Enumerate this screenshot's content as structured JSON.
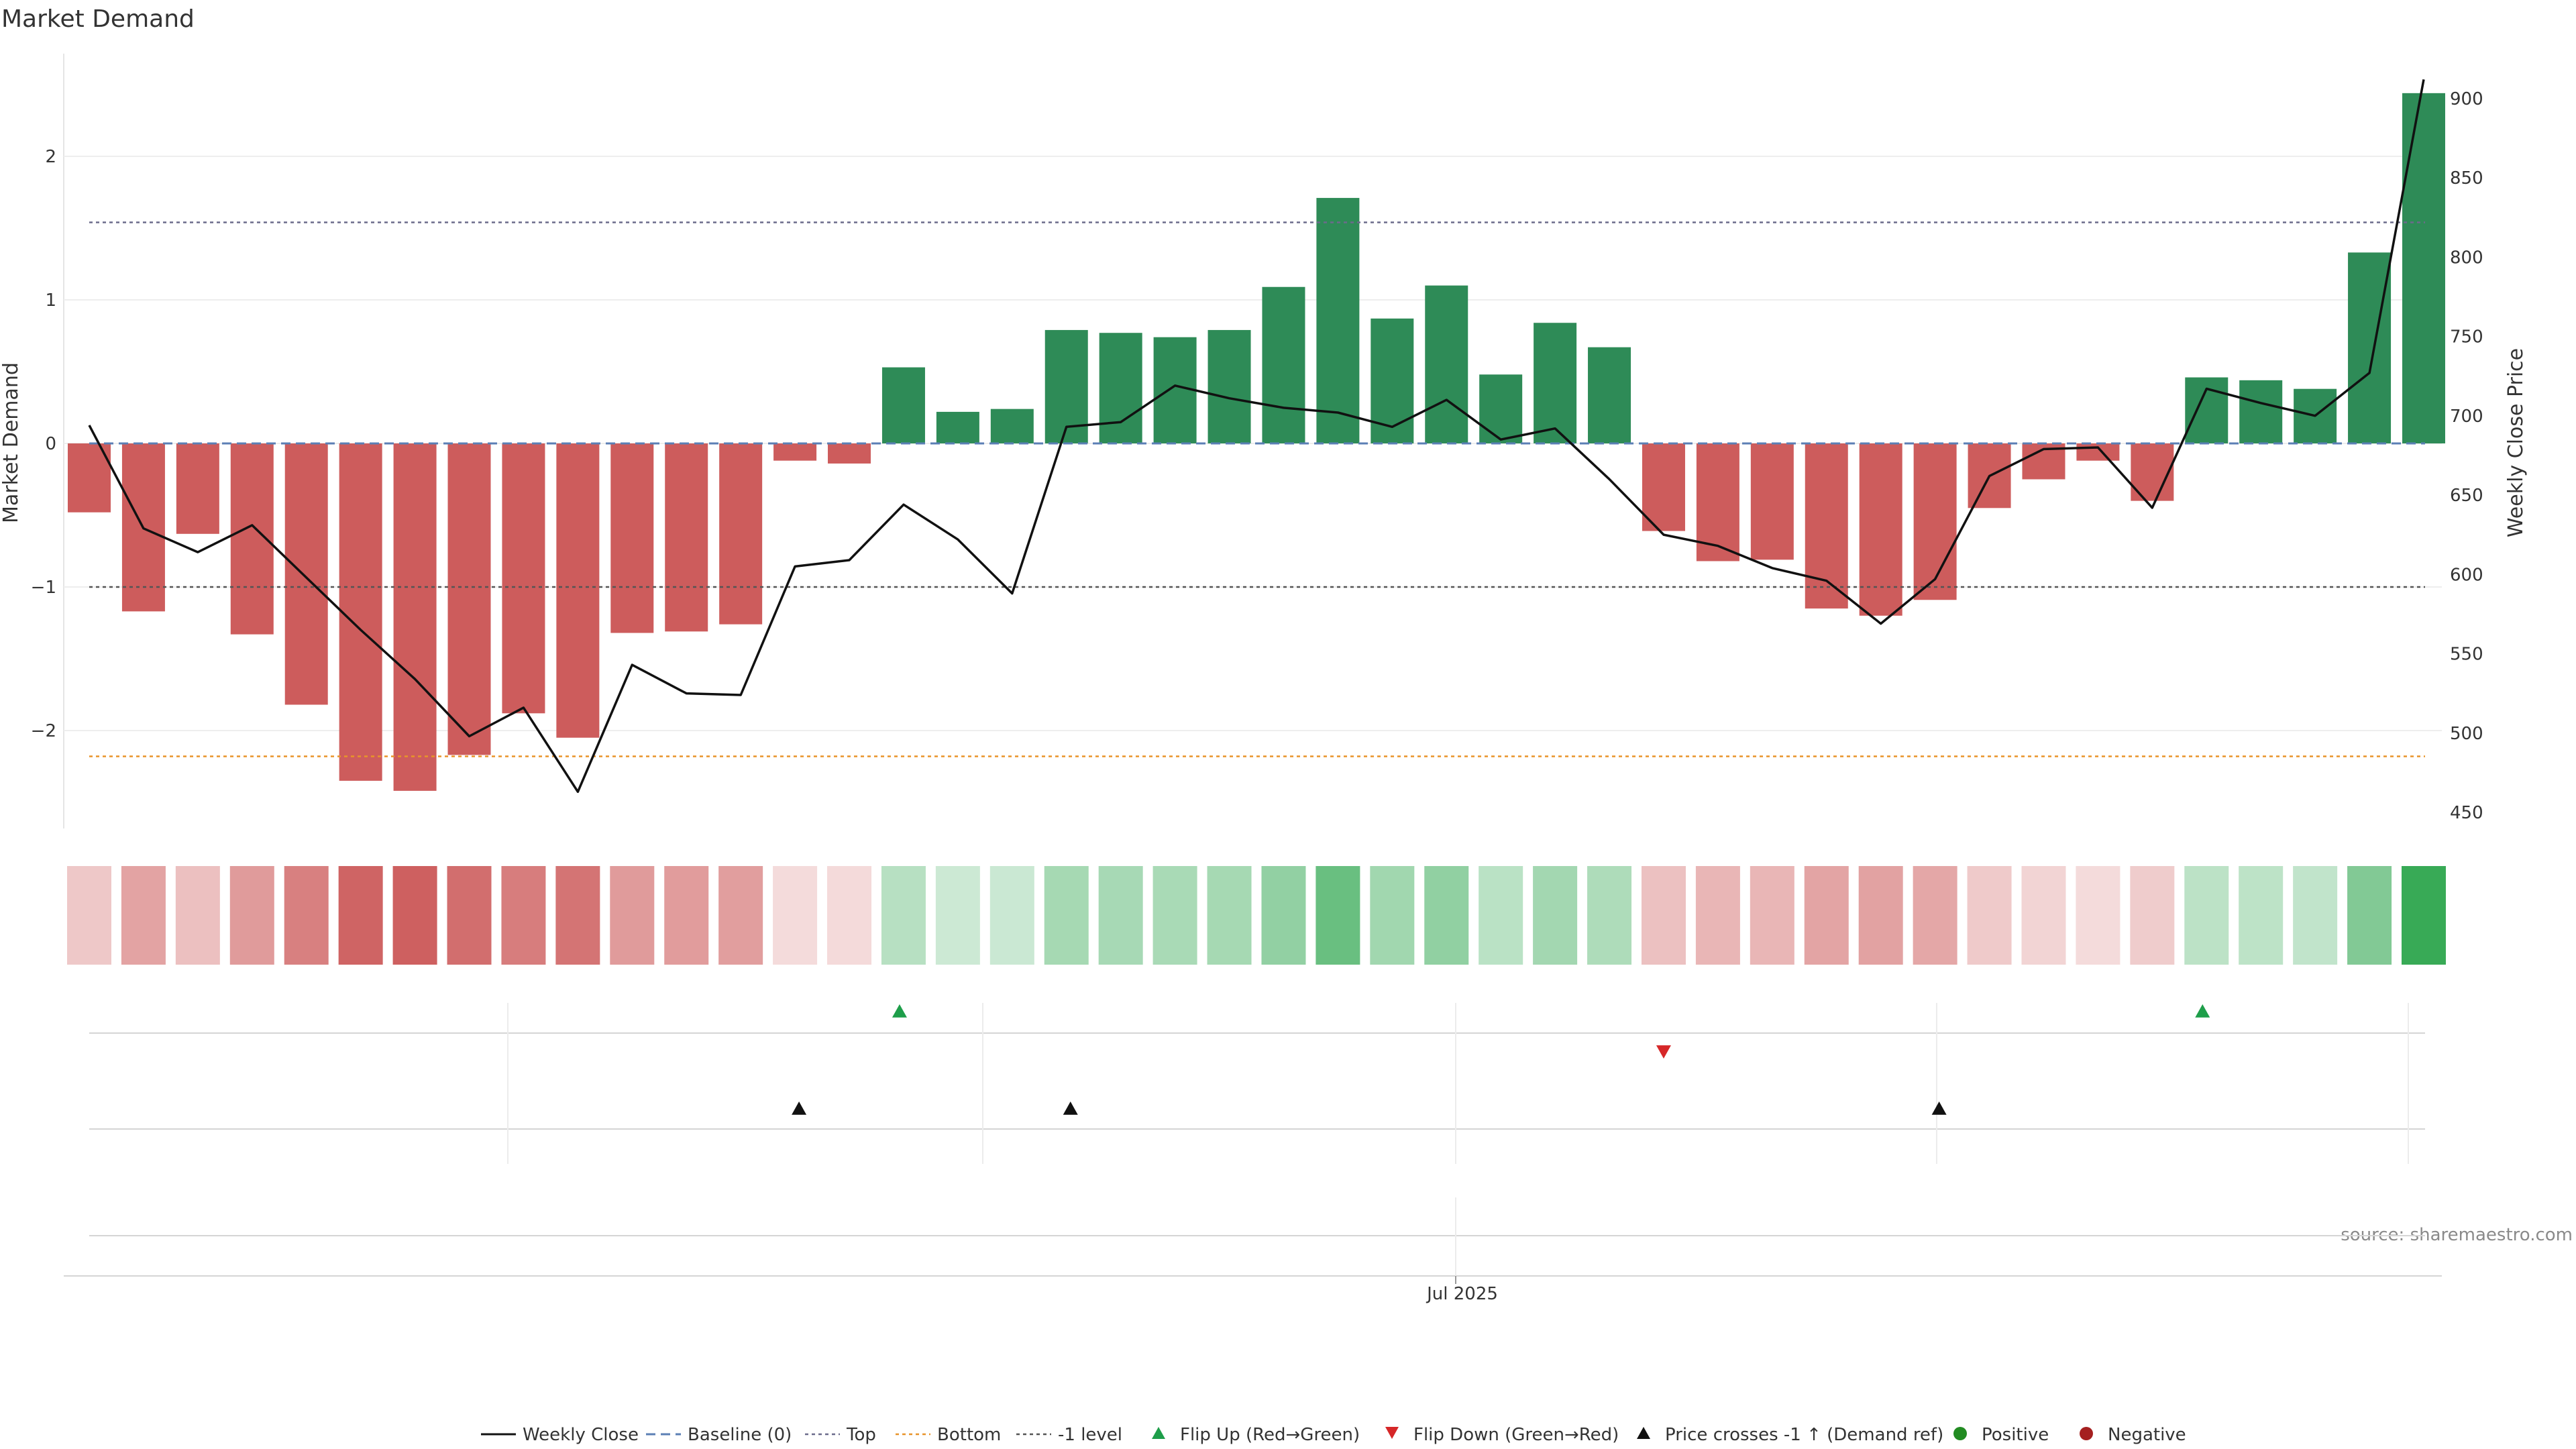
{
  "chart_data": {
    "type": "bar",
    "title": "Market Demand",
    "ylabel": "Market Demand",
    "y2label": "Weekly Close Price",
    "ylim": [
      -2.7,
      2.7
    ],
    "y2lim": [
      440,
      918
    ],
    "yticks": [
      2,
      1,
      0,
      -1,
      -2
    ],
    "ytick_labels": [
      "2",
      "1",
      "0",
      "−1",
      "−2"
    ],
    "y2ticks": [
      900,
      850,
      800,
      750,
      700,
      650,
      600,
      550,
      500,
      450
    ],
    "x_tick_label": "Jul 2025",
    "x_tick_index": 25.5,
    "demand": [
      -0.48,
      -1.17,
      -0.63,
      -1.33,
      -1.82,
      -2.35,
      -2.42,
      -2.17,
      -1.88,
      -2.05,
      -1.32,
      -1.31,
      -1.26,
      -0.12,
      -0.14,
      0.53,
      0.22,
      0.24,
      0.79,
      0.77,
      0.74,
      0.79,
      1.09,
      1.71,
      0.87,
      1.1,
      0.48,
      0.84,
      0.67,
      -0.61,
      -0.82,
      -0.81,
      -1.15,
      -1.2,
      -1.09,
      -0.45,
      -0.25,
      -0.12,
      -0.4,
      0.46,
      0.44,
      0.38,
      1.33,
      2.44
    ],
    "close": [
      694,
      629,
      614,
      631,
      598,
      565,
      534,
      498,
      516,
      463,
      543,
      525,
      524,
      605,
      609,
      644,
      622,
      588,
      693,
      696,
      719,
      711,
      705,
      702,
      693,
      710,
      685,
      692,
      660,
      625,
      618,
      604,
      596,
      569,
      597,
      662,
      679,
      680,
      642,
      717,
      708,
      700,
      727,
      912
    ],
    "levels": {
      "baseline": 0,
      "top": 1.54,
      "bottom": -2.18,
      "minus_one": -1
    },
    "flip_up_idx": [
      15,
      39
    ],
    "flip_down_idx": [
      29
    ],
    "price_cross_idx": [
      13,
      18,
      34
    ],
    "colors": {
      "positive": "#2e8b57",
      "negative": "#cd5c5c",
      "price_line": "#111111",
      "baseline": "#5b7fb5",
      "top": "#6b6b8b",
      "bottom": "#e8942a",
      "minus_one": "#555555",
      "flip_up": "#1e9e4a",
      "flip_down": "#d62728",
      "price_cross": "#111111",
      "legend_positive": "#228b22",
      "legend_negative": "#a52020"
    },
    "legend": [
      {
        "label": "Weekly Close",
        "symbol": "solid-line"
      },
      {
        "label": "Baseline (0)",
        "symbol": "dashed-line"
      },
      {
        "label": "Top",
        "symbol": "dotted-line"
      },
      {
        "label": "Bottom",
        "symbol": "dotted-line"
      },
      {
        "label": "-1 level",
        "symbol": "dotted-line"
      },
      {
        "label": "Flip Up (Red→Green)",
        "symbol": "triangle-up"
      },
      {
        "label": "Flip Down (Green→Red)",
        "symbol": "triangle-down"
      },
      {
        "label": "Price crosses -1 ↑ (Demand ref)",
        "symbol": "triangle-up"
      },
      {
        "label": "Positive",
        "symbol": "circle"
      },
      {
        "label": "Negative",
        "symbol": "circle"
      }
    ],
    "legend_position": "bottom",
    "grid": true
  },
  "source_text": "source: sharemaestro.com"
}
